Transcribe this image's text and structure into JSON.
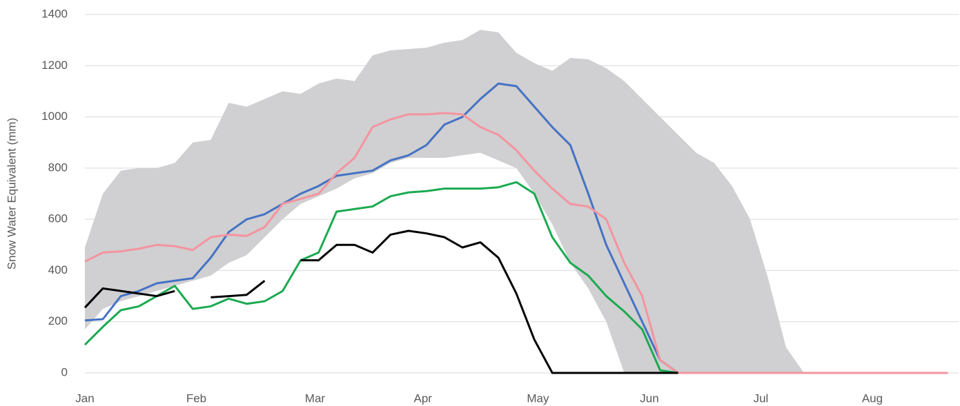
{
  "chart_data": {
    "type": "line",
    "y_label": "Snow Water Equivalent (mm)",
    "x": [
      0,
      5,
      10,
      15,
      20,
      25,
      30,
      35,
      40,
      45,
      50,
      55,
      60,
      65,
      70,
      75,
      80,
      85,
      90,
      95,
      100,
      105,
      110,
      115,
      120,
      125,
      130,
      135,
      140,
      145,
      150,
      155,
      160,
      165,
      170,
      175,
      180,
      185,
      190,
      195,
      200,
      205,
      210,
      215,
      220,
      225,
      230,
      235,
      240
    ],
    "xlim": [
      0,
      243
    ],
    "xticks": [
      {
        "value": 0,
        "label": "Jan"
      },
      {
        "value": 31,
        "label": "Feb"
      },
      {
        "value": 64,
        "label": "Mar"
      },
      {
        "value": 94,
        "label": "Apr"
      },
      {
        "value": 126,
        "label": "May"
      },
      {
        "value": 157,
        "label": "Jun"
      },
      {
        "value": 188,
        "label": "Jul"
      },
      {
        "value": 219,
        "label": "Aug"
      }
    ],
    "ylim": [
      0,
      1400
    ],
    "yticks": [
      0,
      200,
      400,
      600,
      800,
      1000,
      1200,
      1400
    ],
    "grid": true,
    "range": {
      "color": "#d0cfd1",
      "upper": [
        490,
        700,
        790,
        800,
        800,
        820,
        900,
        910,
        1055,
        1040,
        1070,
        1100,
        1090,
        1130,
        1150,
        1140,
        1240,
        1260,
        1265,
        1270,
        1290,
        1300,
        1340,
        1330,
        1250,
        1210,
        1180,
        1230,
        1225,
        1190,
        1140,
        1070,
        1000,
        930,
        860,
        820,
        730,
        600,
        370,
        100,
        0,
        0,
        0,
        0,
        0,
        0,
        0,
        0,
        0
      ],
      "lower": [
        170,
        250,
        280,
        300,
        320,
        340,
        360,
        380,
        430,
        460,
        530,
        600,
        660,
        690,
        720,
        760,
        780,
        820,
        840,
        840,
        840,
        850,
        860,
        830,
        800,
        700,
        580,
        430,
        330,
        200,
        0,
        0,
        0,
        0,
        0,
        0,
        0,
        0,
        0,
        0,
        0,
        0,
        0,
        0,
        0,
        0,
        0,
        0,
        0
      ]
    },
    "series": [
      {
        "color": "#4472c4",
        "values": [
          205,
          210,
          300,
          320,
          350,
          360,
          370,
          450,
          550,
          600,
          620,
          660,
          700,
          730,
          770,
          780,
          790,
          830,
          850,
          890,
          970,
          1000,
          1070,
          1130,
          1120,
          1040,
          960,
          890,
          700,
          500,
          350,
          200,
          50,
          0,
          null,
          null,
          null,
          null,
          null,
          null,
          null,
          null,
          null,
          null,
          null,
          null,
          null,
          null,
          null
        ]
      },
      {
        "color": "#f4949f",
        "values": [
          435,
          470,
          475,
          485,
          500,
          495,
          480,
          530,
          540,
          535,
          570,
          660,
          680,
          700,
          780,
          840,
          960,
          990,
          1010,
          1010,
          1015,
          1010,
          960,
          930,
          870,
          790,
          720,
          660,
          650,
          600,
          430,
          300,
          50,
          0,
          0,
          0,
          0,
          0,
          0,
          0,
          0,
          0,
          0,
          0,
          0,
          0,
          0,
          0,
          0
        ]
      },
      {
        "color": "#1aaa50",
        "values": [
          110,
          180,
          245,
          260,
          300,
          340,
          250,
          260,
          290,
          270,
          280,
          320,
          440,
          470,
          630,
          640,
          650,
          690,
          705,
          710,
          720,
          720,
          720,
          725,
          745,
          700,
          530,
          430,
          380,
          300,
          240,
          170,
          10,
          0,
          null,
          null,
          null,
          null,
          null,
          null,
          null,
          null,
          null,
          null,
          null,
          null,
          null,
          null,
          null
        ]
      },
      {
        "color": "#000000",
        "values": [
          255,
          330,
          320,
          310,
          300,
          320,
          null,
          295,
          300,
          305,
          360,
          null,
          440,
          440,
          500,
          500,
          470,
          540,
          555,
          545,
          530,
          490,
          510,
          450,
          310,
          130,
          0,
          0,
          0,
          0,
          0,
          0,
          0,
          0,
          null,
          null,
          null,
          null,
          null,
          null,
          null,
          null,
          null,
          null,
          null,
          null,
          null,
          null,
          null
        ]
      }
    ]
  }
}
